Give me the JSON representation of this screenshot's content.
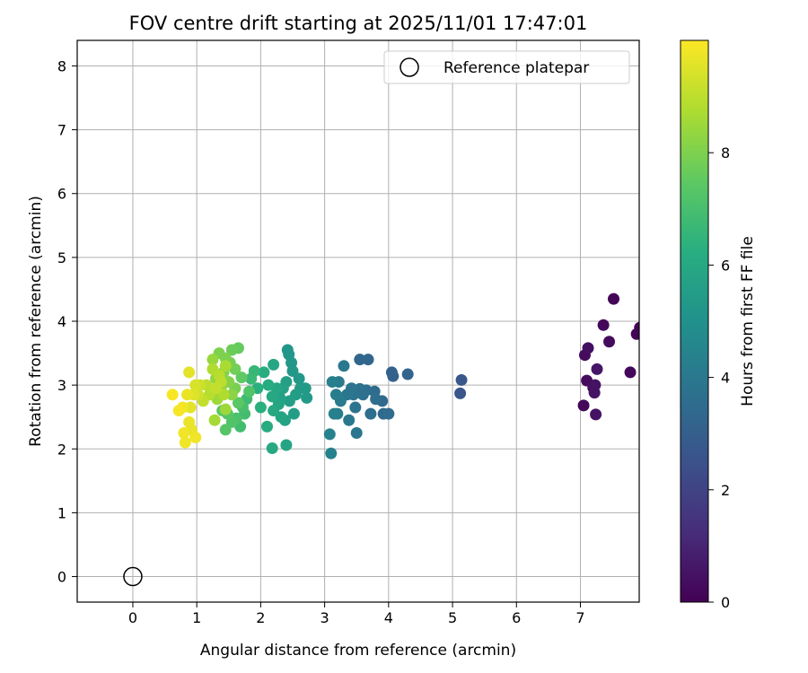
{
  "chart_data": {
    "type": "scatter",
    "title": "FOV centre drift starting at 2025/11/01 17:47:01",
    "xlabel": "Angular distance from reference (arcmin)",
    "ylabel": "Rotation from reference (arcmin)",
    "xlim": [
      -0.87,
      7.92
    ],
    "ylim": [
      -0.4,
      8.4
    ],
    "xticks": [
      0,
      1,
      2,
      3,
      4,
      5,
      6,
      7
    ],
    "yticks": [
      0,
      1,
      2,
      3,
      4,
      5,
      6,
      7,
      8
    ],
    "grid": true,
    "legend": {
      "placement": "top-right",
      "label": "Reference platepar"
    },
    "reference_point": {
      "x": 0,
      "y": 0
    },
    "colorbar": {
      "label": "Hours from first FF file",
      "colormap": "viridis",
      "range": [
        0,
        10
      ],
      "ticks": [
        0,
        2,
        4,
        6,
        8
      ]
    },
    "points": [
      {
        "x": 7.05,
        "y": 2.68,
        "c": 0.2
      },
      {
        "x": 7.07,
        "y": 3.47,
        "c": 0.3
      },
      {
        "x": 7.1,
        "y": 3.07,
        "c": 0.3
      },
      {
        "x": 7.12,
        "y": 3.58,
        "c": 0.4
      },
      {
        "x": 7.2,
        "y": 2.96,
        "c": 0.4
      },
      {
        "x": 7.22,
        "y": 2.88,
        "c": 0.5
      },
      {
        "x": 7.23,
        "y": 3.0,
        "c": 0.5
      },
      {
        "x": 7.24,
        "y": 2.54,
        "c": 0.5
      },
      {
        "x": 7.26,
        "y": 3.25,
        "c": 0.6
      },
      {
        "x": 7.36,
        "y": 3.94,
        "c": 0.2
      },
      {
        "x": 7.45,
        "y": 3.68,
        "c": 0.3
      },
      {
        "x": 7.52,
        "y": 4.35,
        "c": 0.1
      },
      {
        "x": 7.78,
        "y": 3.2,
        "c": 0.2
      },
      {
        "x": 7.88,
        "y": 3.8,
        "c": 0.1
      },
      {
        "x": 7.93,
        "y": 3.9,
        "c": 0.05
      },
      {
        "x": 5.12,
        "y": 2.87,
        "c": 2.6
      },
      {
        "x": 5.14,
        "y": 3.08,
        "c": 2.7
      },
      {
        "x": 4.05,
        "y": 3.2,
        "c": 3.1
      },
      {
        "x": 4.07,
        "y": 3.14,
        "c": 3.1
      },
      {
        "x": 4.3,
        "y": 3.17,
        "c": 3.2
      },
      {
        "x": 3.55,
        "y": 3.4,
        "c": 3.3
      },
      {
        "x": 3.68,
        "y": 3.4,
        "c": 3.3
      },
      {
        "x": 3.9,
        "y": 2.75,
        "c": 3.4
      },
      {
        "x": 3.92,
        "y": 2.55,
        "c": 3.4
      },
      {
        "x": 4.0,
        "y": 2.55,
        "c": 3.5
      },
      {
        "x": 3.72,
        "y": 2.55,
        "c": 3.6
      },
      {
        "x": 3.8,
        "y": 2.78,
        "c": 3.6
      },
      {
        "x": 3.6,
        "y": 2.85,
        "c": 3.7
      },
      {
        "x": 3.55,
        "y": 2.94,
        "c": 3.7
      },
      {
        "x": 3.45,
        "y": 2.85,
        "c": 3.8
      },
      {
        "x": 3.48,
        "y": 2.65,
        "c": 3.8
      },
      {
        "x": 3.5,
        "y": 2.25,
        "c": 3.9
      },
      {
        "x": 3.35,
        "y": 2.85,
        "c": 3.9
      },
      {
        "x": 3.38,
        "y": 2.45,
        "c": 4.0
      },
      {
        "x": 3.3,
        "y": 3.3,
        "c": 4.0
      },
      {
        "x": 3.22,
        "y": 3.05,
        "c": 4.1
      },
      {
        "x": 3.25,
        "y": 2.75,
        "c": 4.1
      },
      {
        "x": 3.18,
        "y": 2.85,
        "c": 4.2
      },
      {
        "x": 3.2,
        "y": 2.55,
        "c": 4.2
      },
      {
        "x": 3.12,
        "y": 3.05,
        "c": 4.3
      },
      {
        "x": 3.08,
        "y": 2.23,
        "c": 4.4
      },
      {
        "x": 3.1,
        "y": 1.93,
        "c": 4.4
      },
      {
        "x": 3.15,
        "y": 2.55,
        "c": 4.3
      },
      {
        "x": 3.42,
        "y": 2.95,
        "c": 3.9
      },
      {
        "x": 3.65,
        "y": 2.92,
        "c": 3.6
      },
      {
        "x": 3.78,
        "y": 2.9,
        "c": 3.5
      },
      {
        "x": 2.42,
        "y": 3.55,
        "c": 5.2
      },
      {
        "x": 2.44,
        "y": 3.48,
        "c": 5.2
      },
      {
        "x": 2.48,
        "y": 3.35,
        "c": 5.3
      },
      {
        "x": 2.5,
        "y": 3.22,
        "c": 5.3
      },
      {
        "x": 2.6,
        "y": 3.1,
        "c": 5.3
      },
      {
        "x": 2.7,
        "y": 2.95,
        "c": 5.4
      },
      {
        "x": 2.72,
        "y": 2.8,
        "c": 5.4
      },
      {
        "x": 2.55,
        "y": 2.85,
        "c": 5.5
      },
      {
        "x": 2.52,
        "y": 2.55,
        "c": 5.5
      },
      {
        "x": 2.4,
        "y": 3.05,
        "c": 5.6
      },
      {
        "x": 2.35,
        "y": 2.95,
        "c": 5.7
      },
      {
        "x": 2.3,
        "y": 2.8,
        "c": 5.7
      },
      {
        "x": 2.32,
        "y": 2.5,
        "c": 5.8
      },
      {
        "x": 2.4,
        "y": 2.06,
        "c": 5.8
      },
      {
        "x": 2.2,
        "y": 3.32,
        "c": 5.9
      },
      {
        "x": 2.25,
        "y": 2.95,
        "c": 5.9
      },
      {
        "x": 2.2,
        "y": 2.6,
        "c": 6.0
      },
      {
        "x": 2.18,
        "y": 2.01,
        "c": 6.0
      },
      {
        "x": 2.12,
        "y": 3.0,
        "c": 6.1
      },
      {
        "x": 2.1,
        "y": 2.35,
        "c": 6.1
      },
      {
        "x": 2.05,
        "y": 3.2,
        "c": 6.2
      },
      {
        "x": 2.0,
        "y": 2.65,
        "c": 6.3
      },
      {
        "x": 1.95,
        "y": 2.95,
        "c": 6.3
      },
      {
        "x": 2.28,
        "y": 2.7,
        "c": 5.8
      },
      {
        "x": 2.45,
        "y": 2.75,
        "c": 5.6
      },
      {
        "x": 2.38,
        "y": 2.45,
        "c": 5.7
      },
      {
        "x": 2.62,
        "y": 2.95,
        "c": 5.4
      },
      {
        "x": 2.18,
        "y": 2.82,
        "c": 6.0
      },
      {
        "x": 1.9,
        "y": 3.22,
        "c": 6.6
      },
      {
        "x": 1.85,
        "y": 3.1,
        "c": 6.7
      },
      {
        "x": 1.78,
        "y": 2.78,
        "c": 6.8
      },
      {
        "x": 1.75,
        "y": 2.55,
        "c": 6.9
      },
      {
        "x": 1.68,
        "y": 2.35,
        "c": 6.9
      },
      {
        "x": 1.72,
        "y": 2.65,
        "c": 7.0
      },
      {
        "x": 1.62,
        "y": 2.48,
        "c": 7.1
      },
      {
        "x": 1.55,
        "y": 2.42,
        "c": 7.2
      },
      {
        "x": 1.48,
        "y": 2.55,
        "c": 7.3
      },
      {
        "x": 1.45,
        "y": 2.3,
        "c": 7.3
      },
      {
        "x": 1.4,
        "y": 2.6,
        "c": 7.4
      },
      {
        "x": 1.65,
        "y": 3.58,
        "c": 7.6
      },
      {
        "x": 1.55,
        "y": 3.55,
        "c": 7.7
      },
      {
        "x": 1.6,
        "y": 3.25,
        "c": 7.8
      },
      {
        "x": 1.52,
        "y": 3.35,
        "c": 7.9
      },
      {
        "x": 1.45,
        "y": 3.42,
        "c": 8.0
      },
      {
        "x": 1.35,
        "y": 3.5,
        "c": 8.0
      },
      {
        "x": 1.42,
        "y": 3.2,
        "c": 8.1
      },
      {
        "x": 1.5,
        "y": 3.05,
        "c": 8.1
      },
      {
        "x": 1.55,
        "y": 2.85,
        "c": 8.2
      },
      {
        "x": 1.38,
        "y": 2.95,
        "c": 8.3
      },
      {
        "x": 1.3,
        "y": 3.1,
        "c": 8.3
      },
      {
        "x": 1.25,
        "y": 3.4,
        "c": 8.4
      },
      {
        "x": 1.32,
        "y": 2.78,
        "c": 8.5
      },
      {
        "x": 1.45,
        "y": 2.62,
        "c": 8.5
      },
      {
        "x": 1.28,
        "y": 2.45,
        "c": 8.6
      },
      {
        "x": 1.6,
        "y": 2.95,
        "c": 7.9
      },
      {
        "x": 1.7,
        "y": 3.12,
        "c": 7.5
      },
      {
        "x": 1.82,
        "y": 2.9,
        "c": 7.2
      },
      {
        "x": 1.65,
        "y": 2.72,
        "c": 7.4
      },
      {
        "x": 1.25,
        "y": 3.25,
        "c": 8.8
      },
      {
        "x": 1.2,
        "y": 2.85,
        "c": 8.9
      },
      {
        "x": 1.15,
        "y": 3.0,
        "c": 9.0
      },
      {
        "x": 1.1,
        "y": 2.75,
        "c": 9.1
      },
      {
        "x": 1.05,
        "y": 3.0,
        "c": 9.2
      },
      {
        "x": 1.02,
        "y": 2.85,
        "c": 9.3
      },
      {
        "x": 0.98,
        "y": 3.0,
        "c": 9.4
      },
      {
        "x": 0.95,
        "y": 2.85,
        "c": 9.5
      },
      {
        "x": 0.9,
        "y": 2.65,
        "c": 9.6
      },
      {
        "x": 0.88,
        "y": 3.2,
        "c": 9.6
      },
      {
        "x": 0.88,
        "y": 2.42,
        "c": 9.7
      },
      {
        "x": 0.92,
        "y": 2.3,
        "c": 9.7
      },
      {
        "x": 0.85,
        "y": 2.85,
        "c": 9.7
      },
      {
        "x": 0.8,
        "y": 2.25,
        "c": 9.8
      },
      {
        "x": 0.78,
        "y": 2.65,
        "c": 9.8
      },
      {
        "x": 0.82,
        "y": 2.1,
        "c": 9.8
      },
      {
        "x": 0.98,
        "y": 2.18,
        "c": 9.8
      },
      {
        "x": 0.72,
        "y": 2.6,
        "c": 9.9
      },
      {
        "x": 0.62,
        "y": 2.85,
        "c": 9.9
      },
      {
        "x": 1.35,
        "y": 3.15,
        "c": 8.9
      },
      {
        "x": 1.38,
        "y": 3.05,
        "c": 9.0
      },
      {
        "x": 1.3,
        "y": 2.95,
        "c": 9.1
      },
      {
        "x": 1.42,
        "y": 2.85,
        "c": 8.8
      },
      {
        "x": 1.45,
        "y": 3.3,
        "c": 8.7
      }
    ]
  }
}
